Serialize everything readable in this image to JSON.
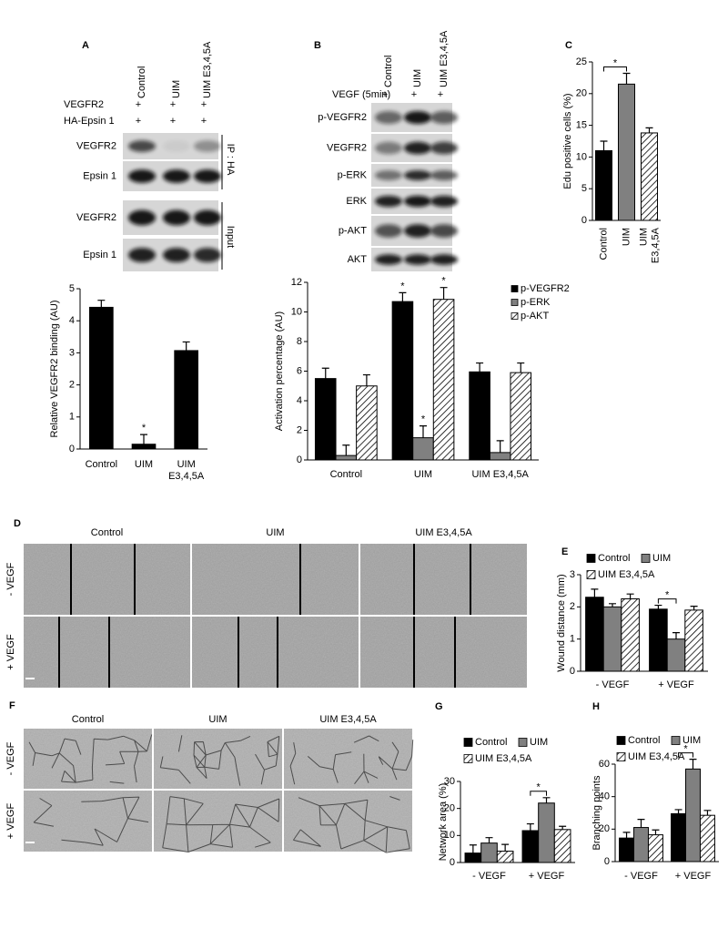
{
  "chart_data": [
    {
      "type": "bar",
      "ylabel": "Relative VEGFR2 binding (AU)",
      "categories": [
        "Control",
        "UIM",
        "UIM E3,4,5A"
      ],
      "values": [
        4.42,
        0.15,
        3.07
      ],
      "errors": [
        0.22,
        0.3,
        0.27
      ],
      "color": "#000000",
      "ylim": [
        0,
        5
      ],
      "yticks": [
        0,
        1,
        2,
        3,
        4,
        5
      ],
      "annotations": [
        "*"
      ]
    },
    {
      "type": "bar",
      "ylabel": "Activation percentage (AU)",
      "categories": [
        "Control",
        "UIM",
        "UIM E3,4,5A"
      ],
      "series": [
        {
          "name": "p-VEGFR2",
          "color": "#000000",
          "hatch": false,
          "values": [
            5.5,
            10.7,
            5.95
          ],
          "errors": [
            0.7,
            0.6,
            0.6
          ]
        },
        {
          "name": "p-ERK",
          "color": "#808080",
          "hatch": false,
          "values": [
            0.3,
            1.5,
            0.5
          ],
          "errors": [
            0.7,
            0.8,
            0.8
          ]
        },
        {
          "name": "p-AKT",
          "color": "#ffffff",
          "hatch": true,
          "values": [
            5.0,
            10.85,
            5.9
          ],
          "errors": [
            0.75,
            0.8,
            0.65
          ]
        }
      ],
      "ylim": [
        0,
        12
      ],
      "yticks": [
        0,
        2,
        4,
        6,
        8,
        10,
        12
      ],
      "annotations": [
        "*",
        "*",
        "*"
      ]
    },
    {
      "type": "bar",
      "panel": "C",
      "ylabel": "Edu positive cells (%)",
      "categories": [
        "Control",
        "UIM",
        "UIM E3,4,5A"
      ],
      "values": [
        11,
        21.5,
        13.8
      ],
      "errors": [
        1.5,
        1.7,
        0.8
      ],
      "colors": [
        "#000000",
        "#808080",
        "#ffffff"
      ],
      "hatch": [
        false,
        false,
        true
      ],
      "ylim": [
        0,
        25
      ],
      "yticks": [
        0,
        5,
        10,
        15,
        20,
        25
      ],
      "annotations": [
        "*"
      ]
    },
    {
      "type": "bar",
      "panel": "E",
      "ylabel": "Wound distance (mm)",
      "categories": [
        "- VEGF",
        "+ VEGF"
      ],
      "series": [
        {
          "name": "Control",
          "color": "#000000",
          "hatch": false,
          "values": [
            2.3,
            1.93
          ],
          "errors": [
            0.25,
            0.12
          ]
        },
        {
          "name": "UIM",
          "color": "#808080",
          "hatch": false,
          "values": [
            2.0,
            1.0
          ],
          "errors": [
            0.1,
            0.2
          ]
        },
        {
          "name": "UIM E3,4,5A",
          "color": "#ffffff",
          "hatch": true,
          "values": [
            2.25,
            1.9
          ],
          "errors": [
            0.15,
            0.12
          ]
        }
      ],
      "ylim": [
        0,
        3
      ],
      "yticks": [
        0,
        1,
        2,
        3
      ],
      "annotations": [
        "*"
      ]
    },
    {
      "type": "bar",
      "panel": "G",
      "ylabel": "Network area (%)",
      "categories": [
        "- VEGF",
        "+ VEGF"
      ],
      "series": [
        {
          "name": "Control",
          "color": "#000000",
          "hatch": false,
          "values": [
            3.5,
            11.8
          ],
          "errors": [
            3,
            2.5
          ]
        },
        {
          "name": "UIM",
          "color": "#808080",
          "hatch": false,
          "values": [
            7.2,
            22
          ],
          "errors": [
            2,
            2
          ]
        },
        {
          "name": "UIM E3,4,5A",
          "color": "#ffffff",
          "hatch": true,
          "values": [
            4.2,
            12.2
          ],
          "errors": [
            2.5,
            1.2
          ]
        }
      ],
      "ylim": [
        0,
        30
      ],
      "yticks": [
        0,
        10,
        20,
        30
      ],
      "annotations": [
        "*"
      ]
    },
    {
      "type": "bar",
      "panel": "H",
      "ylabel": "Branching points",
      "categories": [
        "- VEGF",
        "+ VEGF"
      ],
      "series": [
        {
          "name": "Control",
          "color": "#000000",
          "hatch": false,
          "values": [
            14.5,
            29.5
          ],
          "errors": [
            3.5,
            2.5
          ]
        },
        {
          "name": "UIM",
          "color": "#808080",
          "hatch": false,
          "values": [
            21,
            57
          ],
          "errors": [
            5,
            6
          ]
        },
        {
          "name": "UIM E3,4,5A",
          "color": "#ffffff",
          "hatch": true,
          "values": [
            16.5,
            28.5
          ],
          "errors": [
            3,
            3
          ]
        }
      ],
      "ylim": [
        0,
        60
      ],
      "yticks": [
        0,
        20,
        40,
        60
      ],
      "annotations": [
        "*"
      ]
    }
  ],
  "blots": [
    {
      "panel": "A",
      "lanes": [
        "Control",
        "UIM",
        "UIM E3,4,5A"
      ],
      "conditions": [
        {
          "label": "VEGFR2",
          "marks": [
            "+",
            "+",
            "+"
          ]
        },
        {
          "label": "HA-Epsin 1",
          "marks": [
            "+",
            "+",
            "+"
          ]
        }
      ],
      "bands": [
        "VEGFR2",
        "Epsin 1",
        "VEGFR2",
        "Epsin 1"
      ],
      "groups": [
        "IP : HA",
        "Input"
      ]
    },
    {
      "panel": "B",
      "lanes": [
        "Control",
        "UIM",
        "UIM E3,4,5A"
      ],
      "conditions": [
        {
          "label": "VEGF (5min)",
          "marks": [
            "+",
            "+",
            "+"
          ]
        }
      ],
      "bands": [
        "p-VEGFR2",
        "VEGFR2",
        "p-ERK",
        "ERK",
        "p-AKT",
        "AKT"
      ]
    }
  ],
  "micrographs": [
    {
      "panel": "D",
      "columns": [
        "Control",
        "UIM",
        "UIM E3,4,5A"
      ],
      "rows": [
        "- VEGF",
        "+ VEGF"
      ]
    },
    {
      "panel": "F",
      "columns": [
        "Control",
        "UIM",
        "UIM E3,4,5A"
      ],
      "rows": [
        "- VEGF",
        "+ VEGF"
      ]
    }
  ]
}
